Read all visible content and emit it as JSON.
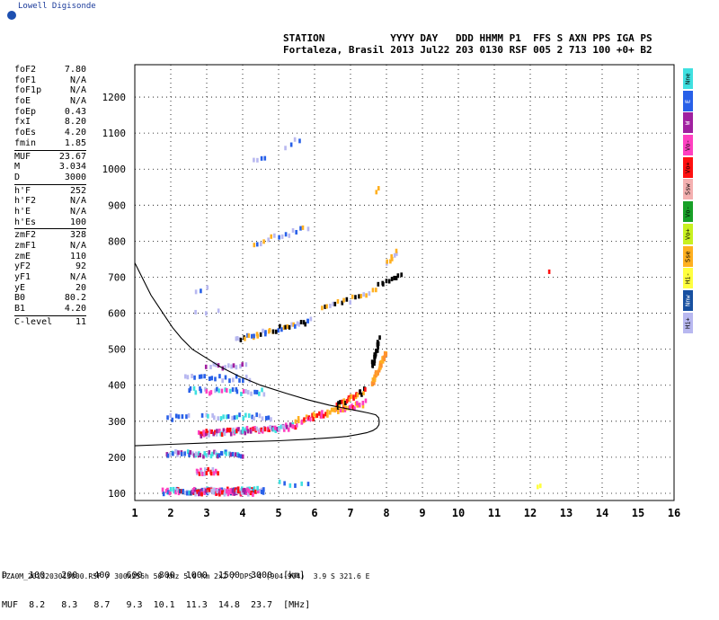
{
  "header": {
    "logo_text": "Lowell Digisonde",
    "station_header": "STATION           YYYY DAY   DDD HHMM P1  FFS S AXN PPS IGA PS",
    "station_values": "Fortaleza, Brasil 2013 Jul22 203 0130 RSF 005 2 713 100 +0+ B2"
  },
  "params": [
    {
      "label": "foF2",
      "value": "7.80"
    },
    {
      "label": "foF1",
      "value": "N/A"
    },
    {
      "label": "foF1p",
      "value": "N/A"
    },
    {
      "label": "foE",
      "value": "N/A"
    },
    {
      "label": "foEp",
      "value": "0.43"
    },
    {
      "label": "fxI",
      "value": "8.20"
    },
    {
      "label": "foEs",
      "value": "4.20"
    },
    {
      "label": "fmin",
      "value": "1.85"
    },
    {
      "sep": true
    },
    {
      "label": "MUF",
      "value": "23.67"
    },
    {
      "label": "M",
      "value": "3.034"
    },
    {
      "label": "D",
      "value": "3000"
    },
    {
      "sep": true
    },
    {
      "label": "h'F",
      "value": "252"
    },
    {
      "label": "h'F2",
      "value": "N/A"
    },
    {
      "label": "h'E",
      "value": "N/A"
    },
    {
      "label": "h'Es",
      "value": "100"
    },
    {
      "sep": true
    },
    {
      "label": "zmF2",
      "value": "328"
    },
    {
      "label": "zmF1",
      "value": "N/A"
    },
    {
      "label": "zmE",
      "value": "110"
    },
    {
      "label": "yF2",
      "value": "92"
    },
    {
      "label": "yF1",
      "value": "N/A"
    },
    {
      "label": "yE",
      "value": "20"
    },
    {
      "label": "B0",
      "value": "80.2"
    },
    {
      "label": "B1",
      "value": "4.20"
    },
    {
      "sep": true
    },
    {
      "label": "C-level",
      "value": "11"
    }
  ],
  "legend": [
    {
      "label": "Nne",
      "color": "#40e0e0"
    },
    {
      "label": "E",
      "color": "#2860e8"
    },
    {
      "label": "W",
      "color": "#a020a0"
    },
    {
      "label": "Vo-",
      "color": "#ff40c0"
    },
    {
      "label": "Vo+",
      "color": "#ff1010"
    },
    {
      "label": "Ssw",
      "color": "#f4b0b0"
    },
    {
      "label": "Vo-",
      "color": "#18a028"
    },
    {
      "label": "Vo+",
      "color": "#c8f020"
    },
    {
      "label": "Sse",
      "color": "#ffb020"
    },
    {
      "label": "Hi-",
      "color": "#ffff40"
    },
    {
      "label": "Nnw",
      "color": "#1850a0"
    },
    {
      "label": "Hi+",
      "color": "#b8b8f0"
    }
  ],
  "distance_table": {
    "row1": "D    100   200   400   600   800  1000  1500  3000  [km]",
    "row2": "MUF  8.2   8.3   8.7   9.3  10.1  11.3  14.8  23.7  [MHz]"
  },
  "footer": "FZA0M_2013203013000.RSF / 300x256h 50 kHz 5.0 km 2x2 / DPS-4 (904-904)  3.9 S 321.6 E",
  "chart_data": {
    "type": "scatter",
    "xlim": [
      1,
      16
    ],
    "ylim": [
      80,
      1290
    ],
    "x_ticks": [
      "1",
      "2",
      "3",
      "4",
      "5",
      "6",
      "7",
      "8",
      "9",
      "10",
      "11",
      "12",
      "13",
      "14",
      "15",
      "16"
    ],
    "y_ticks": [
      "100",
      "200",
      "300",
      "400",
      "500",
      "600",
      "700",
      "800",
      "900",
      "1000",
      "1100",
      "1200"
    ],
    "grid": true,
    "profile_curve": {
      "h": [
        232,
        236,
        240,
        243,
        246,
        250,
        254,
        258,
        263,
        268,
        274,
        281,
        290,
        300,
        310,
        318,
        323,
        328,
        335,
        345,
        360,
        378,
        400,
        425,
        450,
        475,
        500,
        530,
        560,
        590,
        620,
        650,
        680,
        710,
        740
      ],
      "f": [
        1.0,
        2.0,
        3.0,
        4.0,
        5.0,
        5.8,
        6.4,
        6.9,
        7.2,
        7.45,
        7.62,
        7.73,
        7.79,
        7.8,
        7.78,
        7.7,
        7.5,
        7.25,
        6.9,
        6.4,
        5.8,
        5.2,
        4.5,
        3.9,
        3.4,
        3.0,
        2.6,
        2.3,
        2.05,
        1.85,
        1.65,
        1.45,
        1.3,
        1.15,
        1.0
      ]
    },
    "traces": [
      {
        "f": [
          1.8,
          4.6
        ],
        "h": [
          105,
          108
        ],
        "colors": [
          "#2860e8",
          "#40e0e0",
          "#ff1010",
          "#b8b8f0",
          "#1850a0",
          "#ff40c0"
        ],
        "density": 90
      },
      {
        "f": [
          2.6,
          4.3
        ],
        "h": [
          104,
          103
        ],
        "colors": [
          "#ff1010",
          "#ff40c0",
          "#a020a0",
          "#b8b8f0"
        ],
        "density": 60
      },
      {
        "f": [
          2.7,
          3.3
        ],
        "h": [
          160,
          160
        ],
        "colors": [
          "#ff40c0",
          "#b8b8f0",
          "#ff1010"
        ],
        "density": 18
      },
      {
        "f": [
          1.9,
          4.0
        ],
        "h": [
          210,
          208
        ],
        "colors": [
          "#b8b8f0",
          "#2860e8",
          "#40e0e0",
          "#a020a0"
        ],
        "density": 50
      },
      {
        "f": [
          2.8,
          5.5
        ],
        "h": [
          265,
          285
        ],
        "colors": [
          "#ff1010",
          "#ff40c0",
          "#a020a0",
          "#40e0e0",
          "#b8b8f0"
        ],
        "density": 90
      },
      {
        "f": [
          5.5,
          7.4
        ],
        "h": [
          300,
          350
        ],
        "colors": [
          "#ff1010",
          "#ffb020",
          "#ff40c0"
        ],
        "density": 50
      },
      {
        "f": [
          6.6,
          7.4
        ],
        "h": [
          340,
          385
        ],
        "colors": [
          "#ffb020",
          "#000000",
          "#ff1010"
        ],
        "density": 30
      },
      {
        "f": [
          7.6,
          8.0
        ],
        "h": [
          400,
          490
        ],
        "colors": [
          "#ffb020",
          "#ff9030"
        ],
        "density": 35
      },
      {
        "f": [
          7.6,
          7.8
        ],
        "h": [
          450,
          530
        ],
        "colors": [
          "#000000"
        ],
        "density": 20
      },
      {
        "f": [
          2.9,
          4.8
        ],
        "h": [
          315,
          312
        ],
        "colors": [
          "#b8b8f0",
          "#40e0e0",
          "#2860e8"
        ],
        "density": 25
      },
      {
        "f": [
          2.5,
          4.6
        ],
        "h": [
          385,
          380
        ],
        "colors": [
          "#b8b8f0",
          "#2860e8",
          "#ff40c0",
          "#40e0e0"
        ],
        "density": 30
      },
      {
        "f": [
          2.4,
          4.2
        ],
        "h": [
          420,
          418
        ],
        "colors": [
          "#b8b8f0",
          "#2860e8"
        ],
        "density": 20
      },
      {
        "f": [
          3.0,
          4.1
        ],
        "h": [
          453,
          455
        ],
        "colors": [
          "#b8b8f0",
          "#a020a0"
        ],
        "density": 14
      },
      {
        "f": [
          3.8,
          5.9
        ],
        "h": [
          525,
          580
        ],
        "colors": [
          "#ffb020",
          "#b8b8f0",
          "#000000",
          "#2860e8"
        ],
        "density": 40
      },
      {
        "f": [
          6.2,
          7.7
        ],
        "h": [
          610,
          660
        ],
        "colors": [
          "#000000",
          "#b8b8f0",
          "#ffb020"
        ],
        "density": 20
      },
      {
        "f": [
          7.8,
          8.4
        ],
        "h": [
          680,
          700
        ],
        "colors": [
          "#000000"
        ],
        "density": 10
      },
      {
        "f": [
          4.3,
          5.8
        ],
        "h": [
          790,
          838
        ],
        "colors": [
          "#b8b8f0",
          "#2860e8",
          "#ffb020"
        ],
        "density": 16
      },
      {
        "f": [
          8.0,
          8.3
        ],
        "h": [
          740,
          770
        ],
        "colors": [
          "#ffb020",
          "#b8b8f0"
        ],
        "density": 8
      },
      {
        "f": [
          4.3,
          4.6
        ],
        "h": [
          1020,
          1035
        ],
        "colors": [
          "#b8b8f0",
          "#2860e8"
        ],
        "density": 4
      },
      {
        "f": [
          5.2,
          5.6
        ],
        "h": [
          1065,
          1085
        ],
        "colors": [
          "#b8b8f0",
          "#2860e8"
        ],
        "density": 4
      },
      {
        "f": [
          5.0,
          5.8
        ],
        "h": [
          125,
          128
        ],
        "colors": [
          "#40e0e0",
          "#2860e8"
        ],
        "density": 6
      },
      {
        "f": [
          1.9,
          2.5
        ],
        "h": [
          310,
          312
        ],
        "colors": [
          "#2860e8",
          "#b8b8f0"
        ],
        "density": 8
      },
      {
        "f": [
          7.7,
          7.8
        ],
        "h": [
          940,
          950
        ],
        "colors": [
          "#ffb020"
        ],
        "density": 2
      },
      {
        "f": [
          12.5,
          12.5
        ],
        "h": [
          710,
          710
        ],
        "colors": [
          "#ff1010"
        ],
        "density": 1
      },
      {
        "f": [
          12.2,
          12.3
        ],
        "h": [
          118,
          120
        ],
        "colors": [
          "#ffff40"
        ],
        "density": 2
      },
      {
        "f": [
          2.7,
          3.3
        ],
        "h": [
          600,
          610
        ],
        "colors": [
          "#b8b8f0"
        ],
        "density": 3
      },
      {
        "f": [
          2.7,
          3.0
        ],
        "h": [
          665,
          670
        ],
        "colors": [
          "#b8b8f0",
          "#2860e8"
        ],
        "density": 3
      }
    ]
  }
}
